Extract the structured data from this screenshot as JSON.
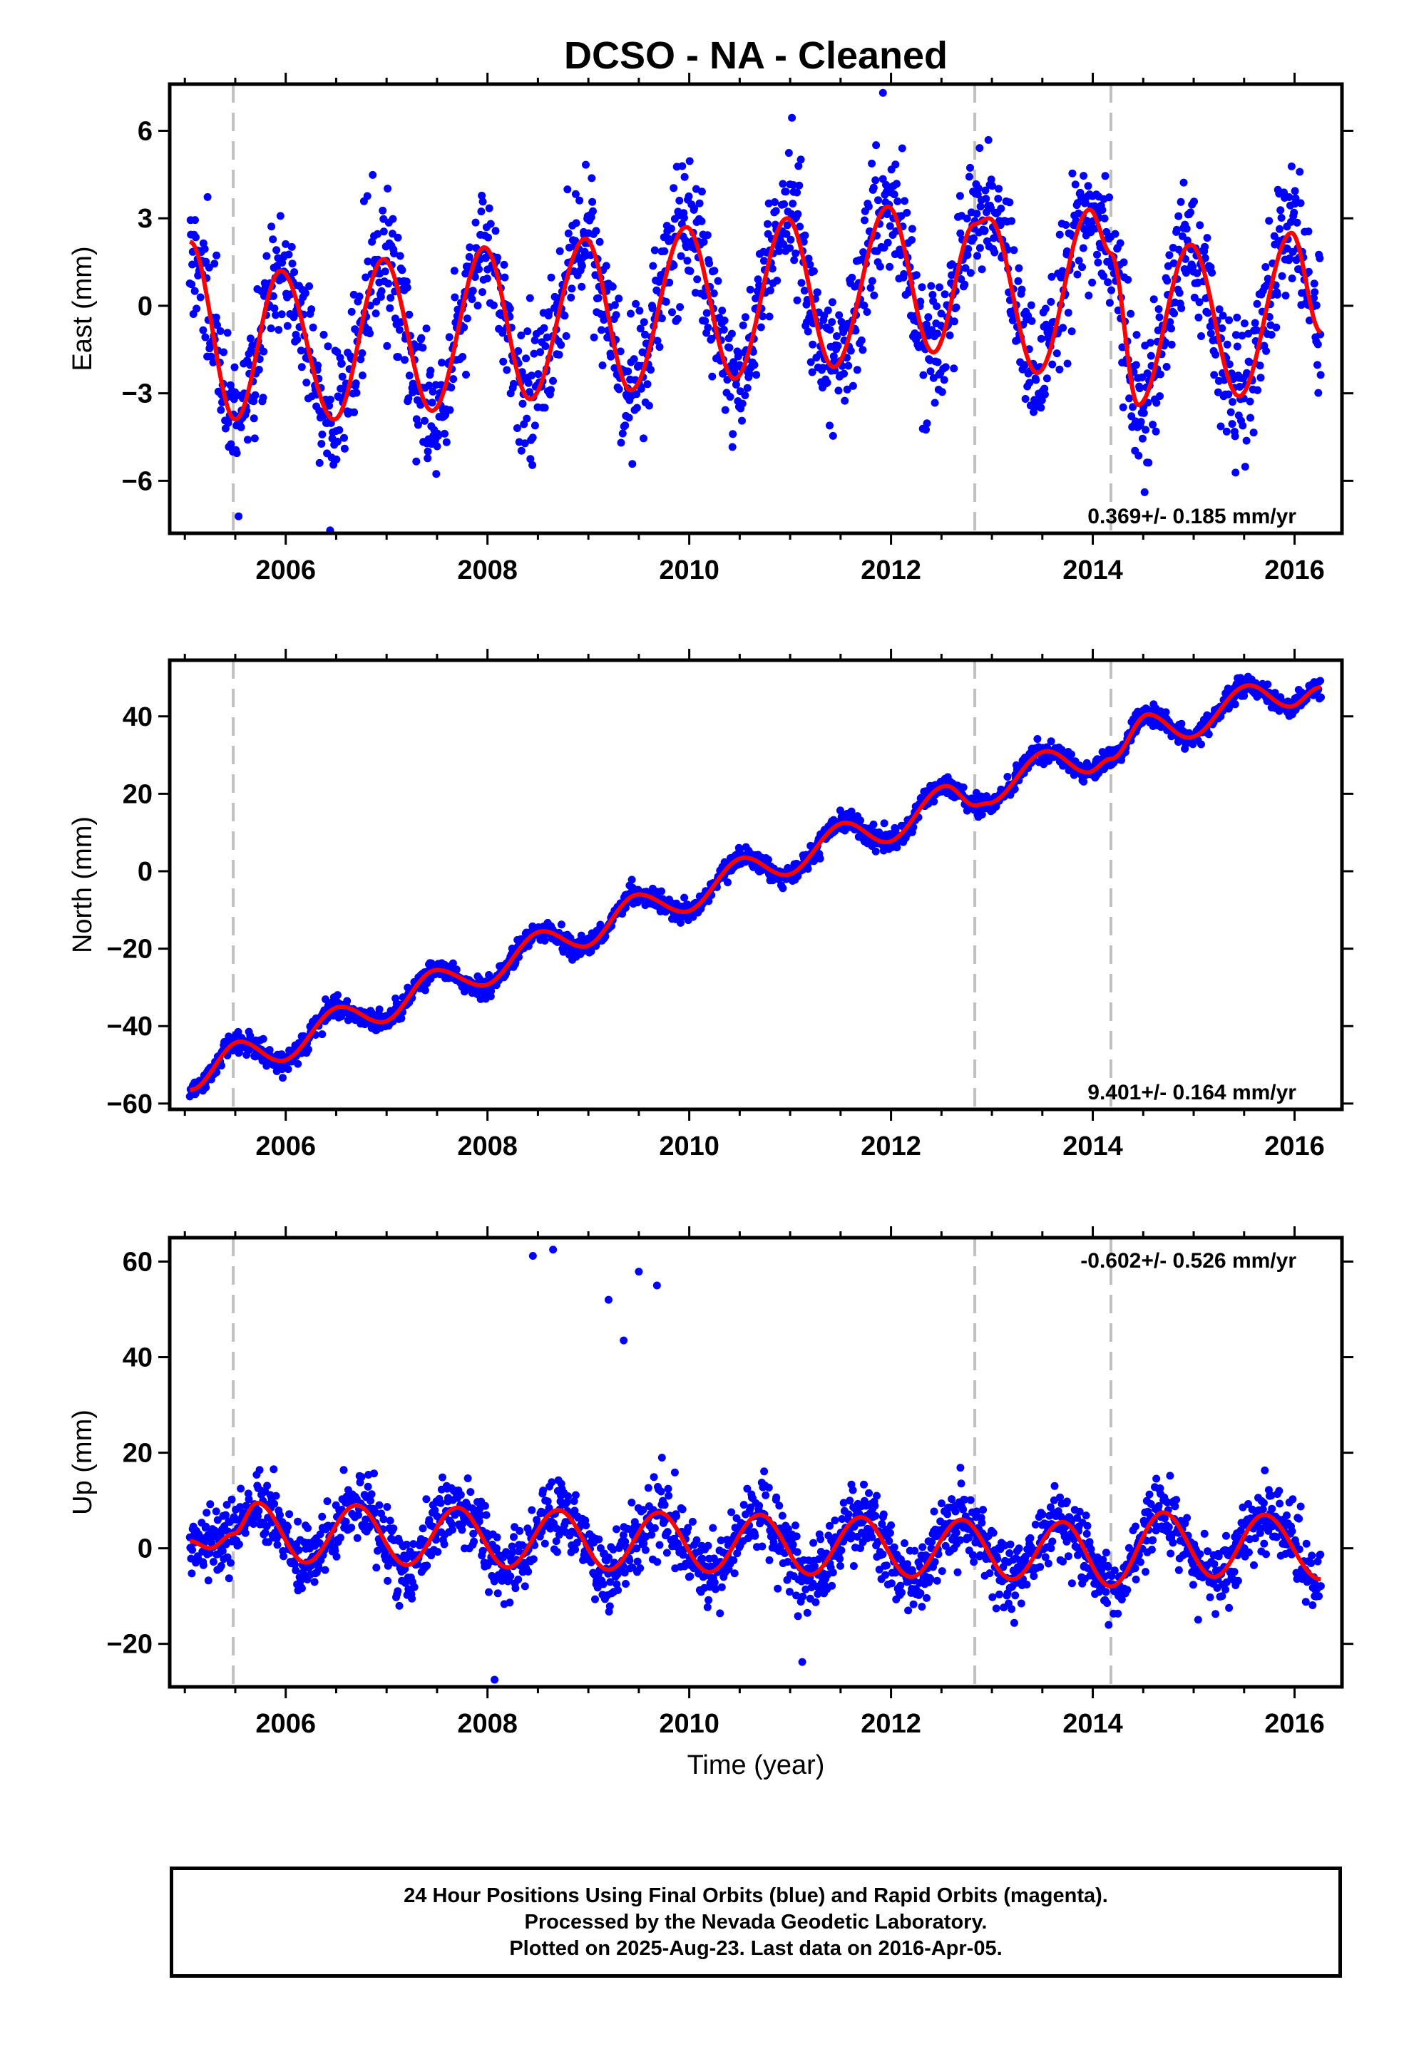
{
  "title": "DCSO  - NA - Cleaned",
  "xlabel": "Time (year)",
  "footer": {
    "line1": "24 Hour Positions Using Final Orbits (blue) and Rapid Orbits (magenta).",
    "line2": "Processed by the Nevada Geodetic Laboratory.",
    "line3": "Plotted on 2025-Aug-23. Last data on 2016-Apr-05."
  },
  "colors": {
    "data_points": "#0000ff",
    "model_fit": "#ff0000",
    "offset_lines": "#c0c0c0",
    "frame": "#000000"
  },
  "chart_data": [
    {
      "type": "scatter",
      "component": "East",
      "ylabel": "East (mm)",
      "rate_label": "0.369+/- 0.185 mm/yr",
      "xlim": [
        2004.85,
        2016.47
      ],
      "ylim": [
        -7.8,
        7.6
      ],
      "xticks": [
        2006,
        2008,
        2010,
        2012,
        2014,
        2016
      ],
      "yticks": [
        -6,
        -3,
        0,
        3,
        6
      ],
      "yticklabels": [
        "−6",
        "−3",
        "0",
        "3",
        "6"
      ],
      "offset_epochs": [
        2005.48,
        2012.83,
        2014.18
      ],
      "x_start": 2005.05,
      "x_end": 2016.26,
      "model": {
        "trend_mm_per_yr": 0.369,
        "series": [
          {
            "name": "",
            "x": [
              2005.05,
              2005.5,
              2005.95,
              2006.48,
              2006.97,
              2007.45,
              2007.97,
              2008.42,
              2008.97,
              2009.42,
              2009.97,
              2010.45,
              2010.97,
              2011.43,
              2011.97,
              2012.42,
              2012.83,
              2012.97,
              2013.45,
              2013.97,
              2014.18,
              2014.45,
              2014.97,
              2015.45,
              2015.97,
              2016.26
            ],
            "y": [
              2.2,
              -3.9,
              1.2,
              -3.9,
              1.6,
              -3.6,
              2.0,
              -3.2,
              2.3,
              -2.9,
              2.7,
              -2.5,
              3.0,
              -2.1,
              3.4,
              -1.6,
              2.8,
              3.0,
              -2.3,
              3.3,
              1.8,
              -3.4,
              2.1,
              -3.1,
              2.5,
              -0.9
            ]
          }
        ]
      },
      "scatter": {
        "seed": 11,
        "noise_mm": 1.1,
        "spread_mm": 0.9
      },
      "outliers": [
        {
          "x": 2011.92,
          "y": 7.3
        },
        {
          "x": 2006.44,
          "y": -7.7
        }
      ]
    },
    {
      "type": "scatter",
      "component": "North",
      "ylabel": "North (mm)",
      "rate_label": "9.401+/- 0.164 mm/yr",
      "xlim": [
        2004.85,
        2016.47
      ],
      "ylim": [
        -61.5,
        54.5
      ],
      "xticks": [
        2006,
        2008,
        2010,
        2012,
        2014,
        2016
      ],
      "yticks": [
        -60,
        -40,
        -20,
        0,
        20,
        40
      ],
      "yticklabels": [
        "−60",
        "−40",
        "−20",
        "0",
        "20",
        "40"
      ],
      "offset_epochs": [
        2005.48,
        2012.83,
        2014.18
      ],
      "x_start": 2005.05,
      "x_end": 2016.26,
      "model": {
        "trend_mm_per_yr": 9.401,
        "series": [
          {
            "name": "",
            "x": [
              2005.05,
              2005.55,
              2005.95,
              2006.55,
              2006.95,
              2007.5,
              2007.95,
              2008.55,
              2008.95,
              2009.5,
              2009.95,
              2010.55,
              2010.95,
              2011.55,
              2011.95,
              2012.55,
              2012.83,
              2012.95,
              2013.55,
              2013.95,
              2014.18,
              2014.55,
              2014.95,
              2015.55,
              2015.95,
              2016.26
            ],
            "y": [
              -56.5,
              -44.0,
              -49.0,
              -35.0,
              -39.0,
              -25.5,
              -29.5,
              -15.5,
              -19.5,
              -6.0,
              -10.5,
              3.5,
              -1.0,
              12.5,
              7.5,
              22.0,
              17.0,
              17.5,
              31.0,
              25.5,
              29.0,
              40.5,
              34.5,
              48.0,
              42.5,
              47.5
            ]
          }
        ]
      },
      "scatter": {
        "seed": 23,
        "noise_mm": 1.3,
        "spread_mm": 1.0
      },
      "outliers": []
    },
    {
      "type": "scatter",
      "component": "Up",
      "ylabel": "Up (mm)",
      "rate_label": "-0.602+/- 0.526 mm/yr",
      "xlim": [
        2004.85,
        2016.47
      ],
      "ylim": [
        -29,
        65
      ],
      "xticks": [
        2006,
        2008,
        2010,
        2012,
        2014,
        2016
      ],
      "yticks": [
        -20,
        0,
        20,
        40,
        60
      ],
      "yticklabels": [
        "−20",
        "0",
        "20",
        "40",
        "60"
      ],
      "offset_epochs": [
        2005.48,
        2012.83,
        2014.18
      ],
      "x_start": 2005.05,
      "x_end": 2016.26,
      "model": {
        "trend_mm_per_yr": -0.602,
        "series": [
          {
            "name": "",
            "x": [
              2005.05,
              2005.25,
              2005.48,
              2005.72,
              2006.2,
              2006.7,
              2007.2,
              2007.7,
              2008.2,
              2008.7,
              2009.2,
              2009.7,
              2010.2,
              2010.7,
              2011.2,
              2011.7,
              2012.2,
              2012.7,
              2013.2,
              2013.7,
              2014.18,
              2014.7,
              2015.2,
              2015.7,
              2016.26
            ],
            "y": [
              1.5,
              0.0,
              3.0,
              9.5,
              -3.0,
              9.0,
              -3.5,
              8.5,
              -4.0,
              8.0,
              -4.5,
              7.5,
              -5.0,
              7.0,
              -5.5,
              6.5,
              -6.0,
              6.0,
              -6.5,
              5.5,
              -8.0,
              7.5,
              -6.0,
              7.0,
              -6.5
            ]
          }
        ]
      },
      "scatter": {
        "seed": 37,
        "noise_mm": 3.6,
        "spread_mm": 2.5
      },
      "outliers": [
        {
          "x": 2008.45,
          "y": 61.2
        },
        {
          "x": 2008.65,
          "y": 62.5
        },
        {
          "x": 2009.2,
          "y": 52.0
        },
        {
          "x": 2009.35,
          "y": 43.5
        },
        {
          "x": 2009.5,
          "y": 57.9
        },
        {
          "x": 2009.68,
          "y": 55.0
        },
        {
          "x": 2008.07,
          "y": -27.5
        },
        {
          "x": 2011.12,
          "y": -23.8
        }
      ]
    }
  ]
}
